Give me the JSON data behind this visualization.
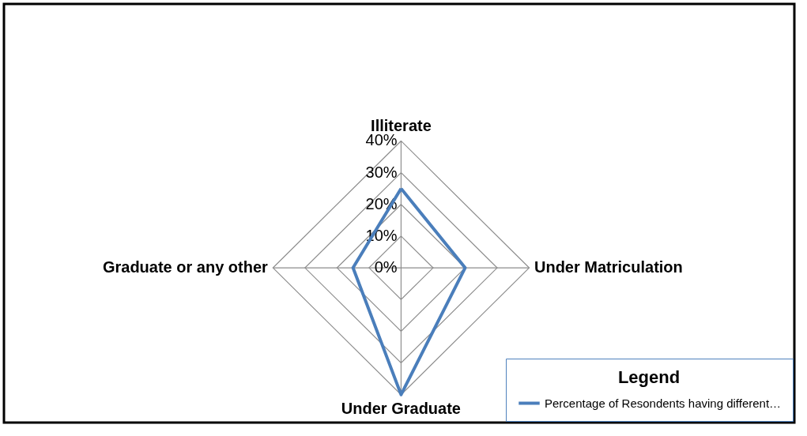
{
  "chart_data": {
    "type": "radar",
    "categories": [
      "Illiterate",
      "Under Matriculation",
      "Under Graduate",
      "Graduate or any other"
    ],
    "series": [
      {
        "name": "Percentage of Resondents having different…",
        "color": "#4a7ebb",
        "values": [
          25,
          20,
          40,
          15
        ]
      }
    ],
    "ylim": [
      0,
      40
    ],
    "yticks": [
      {
        "value": 0,
        "label": "0%"
      },
      {
        "value": 10,
        "label": "10%"
      },
      {
        "value": 20,
        "label": "20%"
      },
      {
        "value": 30,
        "label": "30%"
      },
      {
        "value": 40,
        "label": "40%"
      }
    ],
    "grid": true,
    "legend": "bottom right",
    "legend_title": "Legend",
    "marker": "none",
    "line_style": "solid"
  }
}
